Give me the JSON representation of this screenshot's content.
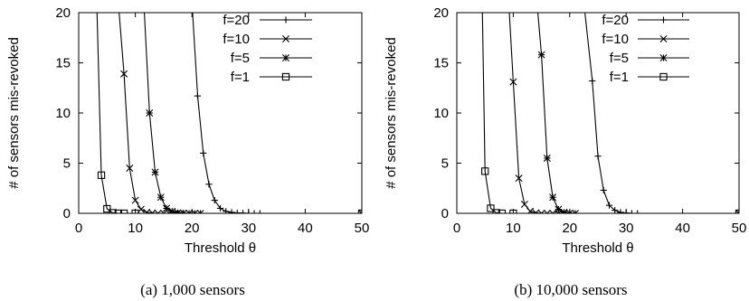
{
  "chart_data": [
    {
      "type": "line",
      "caption": "(a) 1,000 sensors",
      "xlabel": "Threshold θ",
      "ylabel": "# of sensors mis-revoked",
      "xlim": [
        0,
        50
      ],
      "ylim": [
        0,
        20
      ],
      "xticks": [
        0,
        10,
        20,
        30,
        40,
        50
      ],
      "yticks": [
        0,
        5,
        10,
        15,
        20
      ],
      "legend_position": "top-right",
      "grid": false,
      "series": [
        {
          "name": "f=20",
          "marker": "plus",
          "x": [
            20,
            21,
            22,
            23,
            24,
            25,
            26,
            27,
            28,
            29,
            30,
            31,
            32,
            50
          ],
          "y": [
            21,
            11.7,
            6.0,
            2.9,
            1.3,
            0.5,
            0.2,
            0.1,
            0.04,
            0.02,
            0,
            0,
            0,
            0
          ]
        },
        {
          "name": "f=10",
          "marker": "x",
          "x": [
            7,
            8,
            9,
            10,
            11,
            12,
            13,
            14,
            15,
            16,
            17,
            18,
            50
          ],
          "y": [
            21,
            13.9,
            4.5,
            1.3,
            0.4,
            0.1,
            0.03,
            0,
            0,
            0,
            0,
            0,
            0
          ]
        },
        {
          "name": "f=5",
          "marker": "star",
          "x": [
            11.5,
            12.5,
            13.5,
            14.5,
            15.5,
            16.5,
            17.5,
            18.5,
            19.5,
            20.5,
            21.5,
            50
          ],
          "y": [
            21,
            10.0,
            4.1,
            1.6,
            0.5,
            0.2,
            0.06,
            0.02,
            0,
            0,
            0,
            0
          ],
          "markers_from": 1
        },
        {
          "name": "f=1",
          "marker": "square",
          "x": [
            3.2,
            4,
            5,
            6,
            7,
            8,
            10,
            50
          ],
          "y": [
            21,
            3.8,
            0.45,
            0.05,
            0,
            0,
            0,
            0
          ],
          "markers_from": 1
        }
      ]
    },
    {
      "type": "line",
      "caption": "(b) 10,000 sensors",
      "xlabel": "Threshold θ",
      "ylabel": "# of sensors mis-revoked",
      "xlim": [
        0,
        50
      ],
      "ylim": [
        0,
        20
      ],
      "xticks": [
        0,
        10,
        20,
        30,
        40,
        50
      ],
      "xtick_labels": [
        "0",
        "10",
        "20",
        "30",
        "40",
        "50"
      ],
      "yticks": [
        0,
        5,
        10,
        15,
        20
      ],
      "legend_position": "top-right",
      "grid": false,
      "series": [
        {
          "name": "f=20",
          "marker": "plus",
          "x": [
            22.5,
            24,
            25,
            26,
            27,
            28,
            29,
            30,
            31,
            32,
            50
          ],
          "y": [
            21,
            13.2,
            5.7,
            2.3,
            0.8,
            0.3,
            0.1,
            0.04,
            0,
            0,
            0
          ]
        },
        {
          "name": "f=10",
          "marker": "x",
          "x": [
            9.2,
            10,
            11,
            12,
            13,
            14,
            15,
            16,
            17,
            18,
            19,
            50
          ],
          "y": [
            21,
            13.1,
            3.5,
            0.9,
            0.2,
            0.05,
            0,
            0,
            0,
            0,
            0,
            0
          ]
        },
        {
          "name": "f=5",
          "marker": "star",
          "x": [
            14.2,
            15,
            16,
            17,
            18,
            19,
            20,
            21,
            50
          ],
          "y": [
            21,
            15.8,
            5.5,
            1.6,
            0.4,
            0.1,
            0.02,
            0,
            0
          ],
          "markers_from": 1
        },
        {
          "name": "f=1",
          "marker": "square",
          "x": [
            4.5,
            5,
            6,
            7,
            8,
            10,
            50
          ],
          "y": [
            21,
            4.2,
            0.5,
            0.05,
            0,
            0,
            0
          ],
          "markers_from": 1
        }
      ]
    }
  ]
}
